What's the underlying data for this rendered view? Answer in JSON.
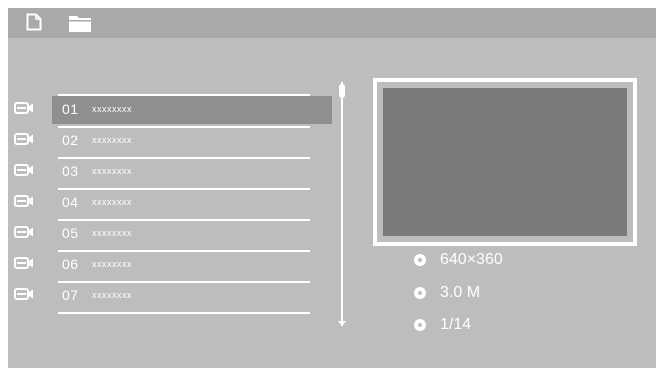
{
  "topbar": {
    "icons": [
      "document-icon",
      "folder-icon"
    ]
  },
  "list": {
    "items": [
      {
        "num": "01",
        "name": "xxxxxxxx",
        "icon": "video-camera-icon",
        "selected": true
      },
      {
        "num": "02",
        "name": "xxxxxxxx",
        "icon": "video-camera-icon",
        "selected": false
      },
      {
        "num": "03",
        "name": "xxxxxxxx",
        "icon": "video-camera-icon",
        "selected": false
      },
      {
        "num": "04",
        "name": "xxxxxxxx",
        "icon": "video-camera-icon",
        "selected": false
      },
      {
        "num": "05",
        "name": "xxxxxxxx",
        "icon": "video-camera-icon",
        "selected": false
      },
      {
        "num": "06",
        "name": "xxxxxxxx",
        "icon": "video-camera-icon",
        "selected": false
      },
      {
        "num": "07",
        "name": "xxxxxxxx",
        "icon": "video-camera-icon",
        "selected": false
      }
    ]
  },
  "info": {
    "resolution": "640×360",
    "size": "3.0 M",
    "position": "1/14"
  },
  "colors": {
    "background": "#bdbdbd",
    "topbar": "#a9a9a9",
    "selected_row": "#8f8f8f",
    "preview": "#7a7a7a",
    "foreground": "#ffffff"
  }
}
